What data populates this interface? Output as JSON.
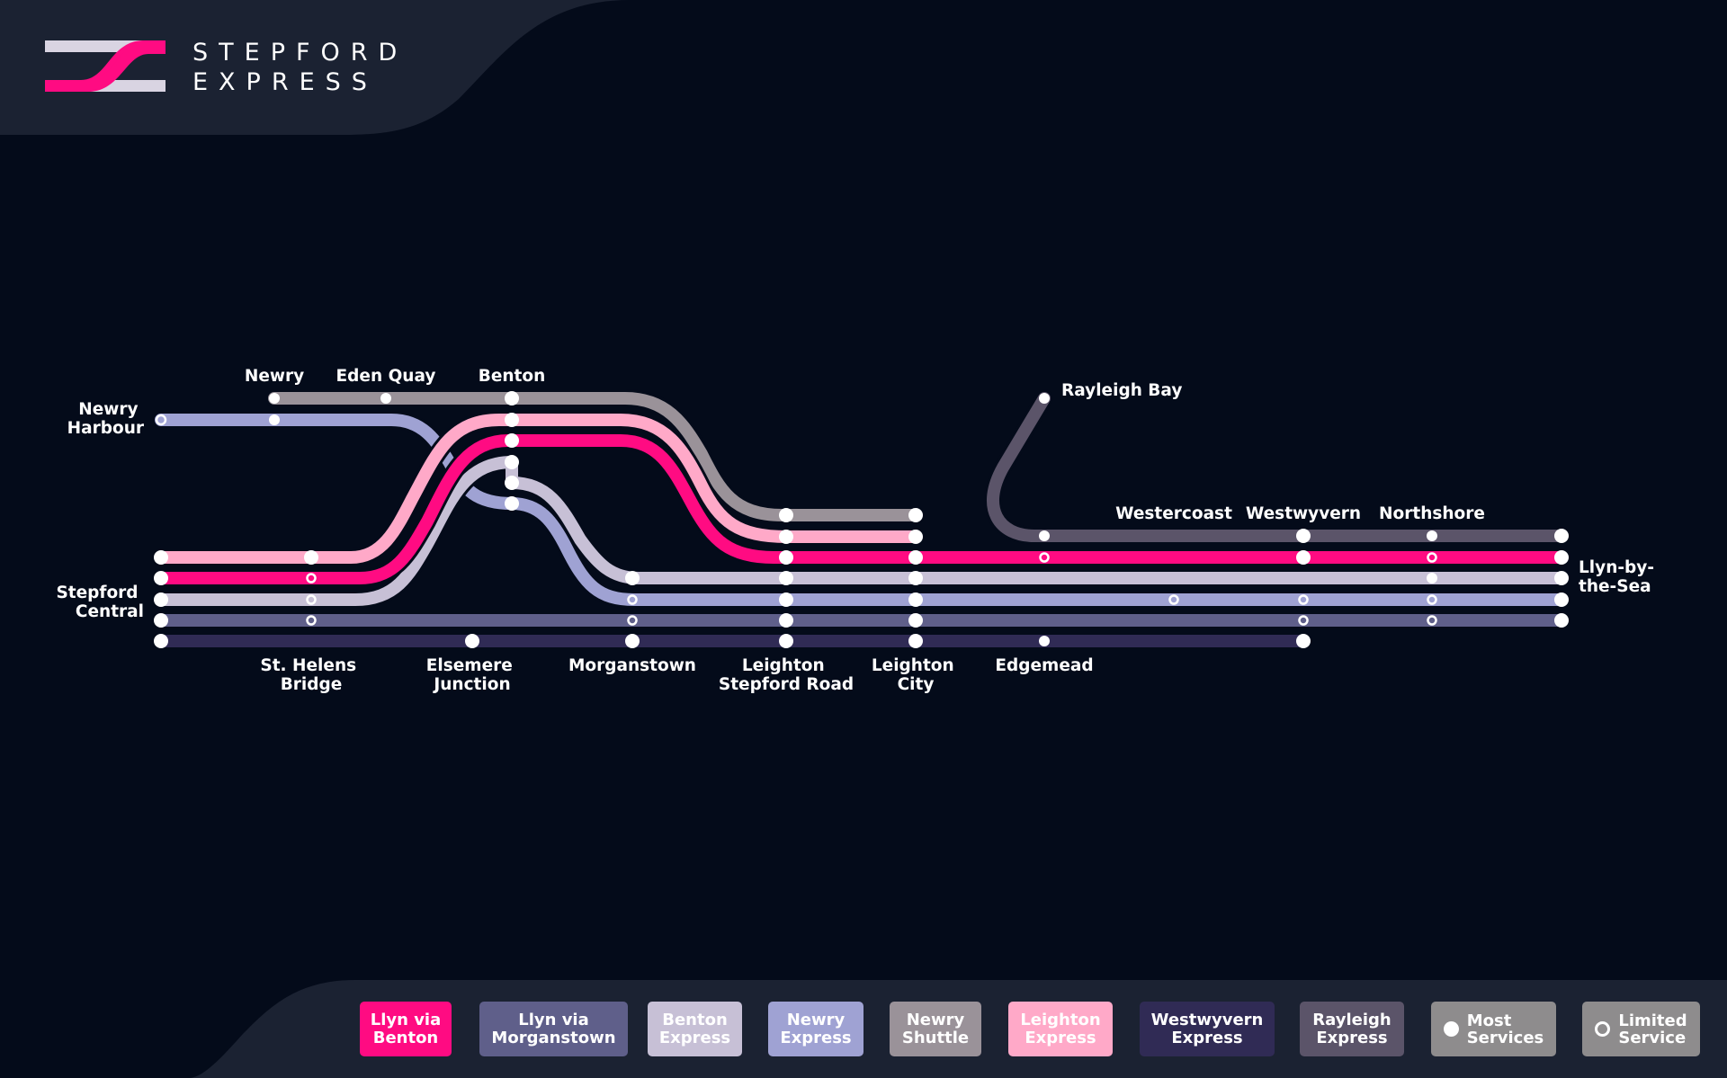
{
  "brand": {
    "name_line1": "STEPFORD",
    "name_line2": "EXPRESS",
    "accent_color": "#ff0b82"
  },
  "stations": {
    "newry_harbour": "Newry\nHarbour",
    "newry": "Newry",
    "eden_quay": "Eden Quay",
    "benton": "Benton",
    "rayleigh_bay": "Rayleigh Bay",
    "westercoast": "Westercoast",
    "westwyvern": "Westwyvern",
    "northshore": "Northshore",
    "llyn_by_the_sea": "Llyn-by-\nthe-Sea",
    "stepford_central": "Stepford\nCentral",
    "st_helens_bridge": "St. Helens\nBridge",
    "elsemere_junction": "Elsemere\nJunction",
    "morganstown": "Morganstown",
    "leighton_stepford_road": "Leighton\nStepford Road",
    "leighton_city": "Leighton\nCity",
    "edgemead": "Edgemead"
  },
  "routes": [
    {
      "id": "llyn_via_benton",
      "label": "Llyn via\nBenton",
      "color": "#ff0b82"
    },
    {
      "id": "llyn_via_morganstown",
      "label": "Llyn via\nMorganstown",
      "color": "#5f5f8a"
    },
    {
      "id": "benton_express",
      "label": "Benton\nExpress",
      "color": "#c7c0d6"
    },
    {
      "id": "newry_express",
      "label": "Newry\nExpress",
      "color": "#9fa2d3"
    },
    {
      "id": "newry_shuttle",
      "label": "Newry\nShuttle",
      "color": "#9a9299"
    },
    {
      "id": "leighton_express",
      "label": "Leighton\nExpress",
      "color": "#ffa9c8"
    },
    {
      "id": "westwyvern_express",
      "label": "Westwyvern\nExpress",
      "color": "#302b55"
    },
    {
      "id": "rayleigh_express",
      "label": "Rayleigh\nExpress",
      "color": "#5b5469"
    }
  ],
  "legend_keys": {
    "most_services": "Most\nServices",
    "limited_service": "Limited\nService"
  }
}
